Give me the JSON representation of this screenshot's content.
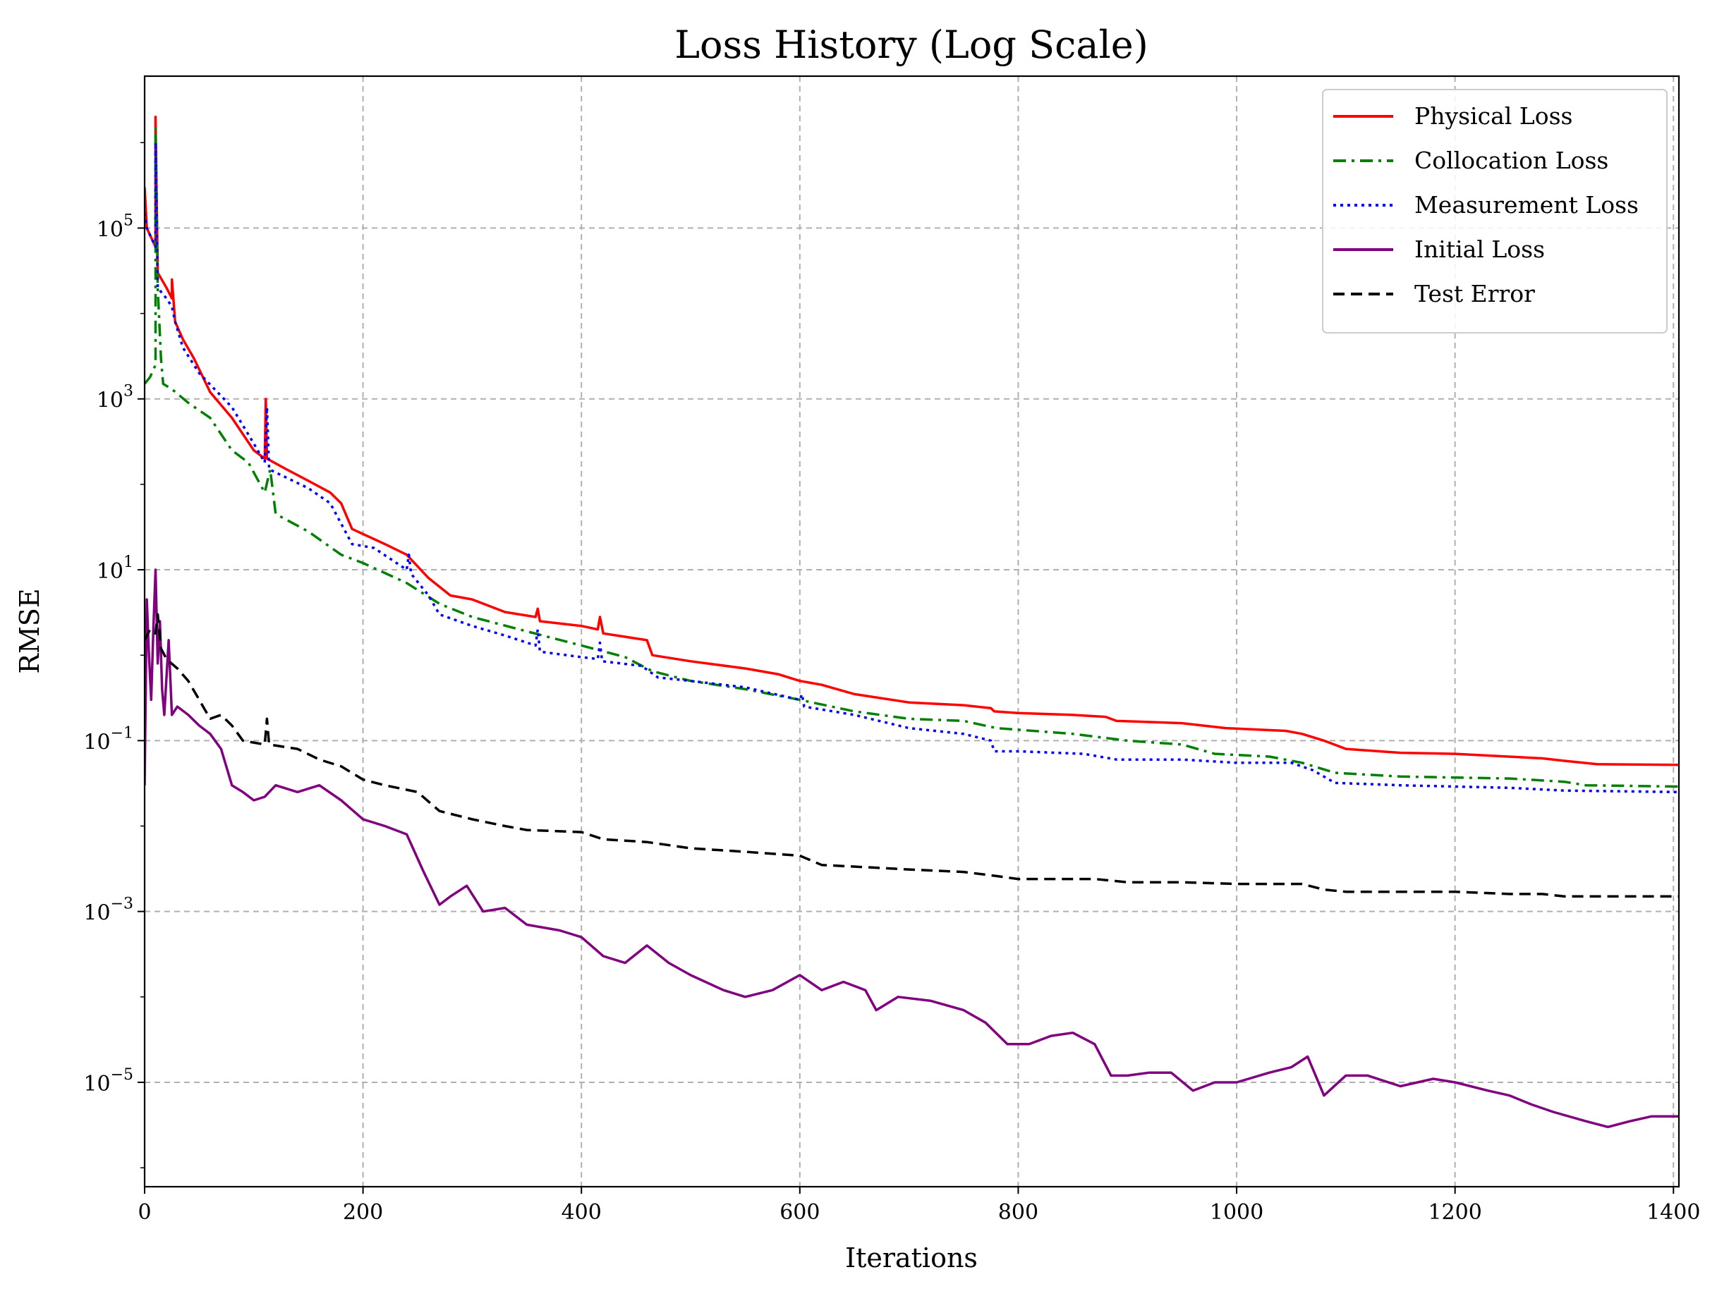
{
  "chart_data": {
    "type": "line",
    "title": "Loss History (Log Scale)",
    "xlabel": "Iterations",
    "ylabel": "RMSE",
    "xlim": [
      0,
      1405
    ],
    "ylim": [
      6e-07,
      6000000.0
    ],
    "yscale": "log",
    "grid": true,
    "legend_position": "top-right",
    "x_ticks": [
      0,
      200,
      400,
      600,
      800,
      1000,
      1200,
      1400
    ],
    "y_ticks": [
      {
        "value": 100000.0,
        "base": "10",
        "exp": "5"
      },
      {
        "value": 1000.0,
        "base": "10",
        "exp": "3"
      },
      {
        "value": 10,
        "base": "10",
        "exp": "1"
      },
      {
        "value": 0.1,
        "base": "10",
        "exp": "−1"
      },
      {
        "value": 0.001,
        "base": "10",
        "exp": "−3"
      },
      {
        "value": 1e-05,
        "base": "10",
        "exp": "−5"
      }
    ],
    "series": [
      {
        "name": "Physical Loss",
        "color": "#ff0000",
        "style": "solid",
        "points": [
          [
            0,
            300000
          ],
          [
            2,
            100000
          ],
          [
            10,
            60000
          ],
          [
            10,
            2000000
          ],
          [
            12,
            30000
          ],
          [
            20,
            20000
          ],
          [
            25,
            15000
          ],
          [
            25,
            25000
          ],
          [
            28,
            8000
          ],
          [
            35,
            5000
          ],
          [
            45,
            3000
          ],
          [
            60,
            1200
          ],
          [
            80,
            600
          ],
          [
            100,
            250
          ],
          [
            110,
            200
          ],
          [
            111,
            1000
          ],
          [
            112,
            200
          ],
          [
            130,
            150
          ],
          [
            150,
            110
          ],
          [
            170,
            80
          ],
          [
            180,
            60
          ],
          [
            190,
            30
          ],
          [
            220,
            20
          ],
          [
            240,
            15
          ],
          [
            260,
            8
          ],
          [
            280,
            5
          ],
          [
            300,
            4.5
          ],
          [
            330,
            3.2
          ],
          [
            358,
            2.8
          ],
          [
            360,
            3.5
          ],
          [
            362,
            2.5
          ],
          [
            400,
            2.2
          ],
          [
            415,
            2
          ],
          [
            417,
            2.8
          ],
          [
            420,
            1.8
          ],
          [
            460,
            1.5
          ],
          [
            465,
            1.0
          ],
          [
            500,
            0.85
          ],
          [
            550,
            0.7
          ],
          [
            580,
            0.6
          ],
          [
            600,
            0.5
          ],
          [
            620,
            0.45
          ],
          [
            650,
            0.35
          ],
          [
            700,
            0.28
          ],
          [
            750,
            0.26
          ],
          [
            775,
            0.24
          ],
          [
            778,
            0.22
          ],
          [
            800,
            0.21
          ],
          [
            850,
            0.2
          ],
          [
            880,
            0.19
          ],
          [
            890,
            0.17
          ],
          [
            950,
            0.16
          ],
          [
            990,
            0.14
          ],
          [
            1045,
            0.13
          ],
          [
            1060,
            0.12
          ],
          [
            1080,
            0.1
          ],
          [
            1100,
            0.08
          ],
          [
            1150,
            0.072
          ],
          [
            1200,
            0.07
          ],
          [
            1280,
            0.062
          ],
          [
            1300,
            0.058
          ],
          [
            1330,
            0.053
          ],
          [
            1405,
            0.052
          ]
        ]
      },
      {
        "name": "Collocation Loss",
        "color": "#008000",
        "style": "dashdot",
        "points": [
          [
            0,
            1500
          ],
          [
            5,
            1800
          ],
          [
            10,
            2500
          ],
          [
            10,
            1500000
          ],
          [
            12,
            20000
          ],
          [
            15,
            3000
          ],
          [
            17,
            1500
          ],
          [
            25,
            1300
          ],
          [
            40,
            900
          ],
          [
            60,
            600
          ],
          [
            80,
            250
          ],
          [
            95,
            180
          ],
          [
            110,
            80
          ],
          [
            115,
            150
          ],
          [
            120,
            45
          ],
          [
            150,
            28
          ],
          [
            180,
            15
          ],
          [
            200,
            12
          ],
          [
            240,
            7
          ],
          [
            270,
            4
          ],
          [
            300,
            2.8
          ],
          [
            350,
            1.9
          ],
          [
            400,
            1.3
          ],
          [
            440,
            0.95
          ],
          [
            465,
            0.65
          ],
          [
            500,
            0.5
          ],
          [
            550,
            0.4
          ],
          [
            600,
            0.3
          ],
          [
            650,
            0.22
          ],
          [
            700,
            0.18
          ],
          [
            750,
            0.17
          ],
          [
            780,
            0.14
          ],
          [
            850,
            0.12
          ],
          [
            900,
            0.1
          ],
          [
            950,
            0.09
          ],
          [
            980,
            0.07
          ],
          [
            1030,
            0.065
          ],
          [
            1060,
            0.055
          ],
          [
            1090,
            0.042
          ],
          [
            1150,
            0.038
          ],
          [
            1250,
            0.036
          ],
          [
            1300,
            0.033
          ],
          [
            1320,
            0.03
          ],
          [
            1405,
            0.029
          ]
        ]
      },
      {
        "name": "Measurement Loss",
        "color": "#0000ff",
        "style": "dotted",
        "points": [
          [
            0,
            150000
          ],
          [
            2,
            100000
          ],
          [
            10,
            60000
          ],
          [
            10,
            1000000
          ],
          [
            12,
            20000
          ],
          [
            20,
            15000
          ],
          [
            25,
            12000
          ],
          [
            28,
            8000
          ],
          [
            35,
            4000
          ],
          [
            50,
            2000
          ],
          [
            80,
            800
          ],
          [
            100,
            300
          ],
          [
            110,
            180
          ],
          [
            112,
            800
          ],
          [
            114,
            150
          ],
          [
            150,
            90
          ],
          [
            170,
            60
          ],
          [
            190,
            20
          ],
          [
            210,
            18
          ],
          [
            240,
            10
          ],
          [
            242,
            15
          ],
          [
            244,
            9
          ],
          [
            260,
            5
          ],
          [
            270,
            3
          ],
          [
            300,
            2.2
          ],
          [
            330,
            1.7
          ],
          [
            358,
            1.3
          ],
          [
            360,
            2.0
          ],
          [
            362,
            1.1
          ],
          [
            400,
            0.95
          ],
          [
            415,
            0.9
          ],
          [
            417,
            1.4
          ],
          [
            419,
            0.85
          ],
          [
            455,
            0.75
          ],
          [
            470,
            0.55
          ],
          [
            500,
            0.5
          ],
          [
            550,
            0.42
          ],
          [
            600,
            0.3
          ],
          [
            602,
            0.35
          ],
          [
            604,
            0.25
          ],
          [
            650,
            0.2
          ],
          [
            700,
            0.14
          ],
          [
            750,
            0.12
          ],
          [
            775,
            0.1
          ],
          [
            778,
            0.075
          ],
          [
            800,
            0.075
          ],
          [
            860,
            0.07
          ],
          [
            890,
            0.06
          ],
          [
            950,
            0.06
          ],
          [
            1000,
            0.055
          ],
          [
            1050,
            0.055
          ],
          [
            1070,
            0.045
          ],
          [
            1090,
            0.032
          ],
          [
            1150,
            0.03
          ],
          [
            1250,
            0.028
          ],
          [
            1300,
            0.026
          ],
          [
            1405,
            0.025
          ]
        ]
      },
      {
        "name": "Initial Loss",
        "color": "#800080",
        "style": "solid",
        "points": [
          [
            0,
            0.03
          ],
          [
            2,
            4.5
          ],
          [
            4,
            1.0
          ],
          [
            6,
            0.3
          ],
          [
            8,
            2.0
          ],
          [
            10,
            10
          ],
          [
            12,
            0.8
          ],
          [
            14,
            2.5
          ],
          [
            16,
            0.4
          ],
          [
            18,
            0.2
          ],
          [
            22,
            1.5
          ],
          [
            25,
            0.2
          ],
          [
            30,
            0.25
          ],
          [
            40,
            0.2
          ],
          [
            50,
            0.15
          ],
          [
            60,
            0.12
          ],
          [
            70,
            0.08
          ],
          [
            80,
            0.03
          ],
          [
            90,
            0.025
          ],
          [
            100,
            0.02
          ],
          [
            110,
            0.022
          ],
          [
            120,
            0.03
          ],
          [
            140,
            0.025
          ],
          [
            160,
            0.03
          ],
          [
            180,
            0.02
          ],
          [
            200,
            0.012
          ],
          [
            220,
            0.01
          ],
          [
            240,
            0.008
          ],
          [
            255,
            0.003
          ],
          [
            270,
            0.0012
          ],
          [
            280,
            0.0015
          ],
          [
            295,
            0.002
          ],
          [
            310,
            0.001
          ],
          [
            330,
            0.0011
          ],
          [
            350,
            0.0007
          ],
          [
            380,
            0.0006
          ],
          [
            400,
            0.0005
          ],
          [
            420,
            0.0003
          ],
          [
            440,
            0.00025
          ],
          [
            460,
            0.0004
          ],
          [
            480,
            0.00025
          ],
          [
            500,
            0.00018
          ],
          [
            530,
            0.00012
          ],
          [
            550,
            0.0001
          ],
          [
            575,
            0.00012
          ],
          [
            600,
            0.00018
          ],
          [
            620,
            0.00012
          ],
          [
            640,
            0.00015
          ],
          [
            660,
            0.00012
          ],
          [
            670,
            7e-05
          ],
          [
            690,
            0.0001
          ],
          [
            720,
            9e-05
          ],
          [
            750,
            7e-05
          ],
          [
            770,
            5e-05
          ],
          [
            790,
            2.8e-05
          ],
          [
            810,
            2.8e-05
          ],
          [
            830,
            3.5e-05
          ],
          [
            850,
            3.8e-05
          ],
          [
            870,
            2.8e-05
          ],
          [
            885,
            1.2e-05
          ],
          [
            900,
            1.2e-05
          ],
          [
            920,
            1.3e-05
          ],
          [
            940,
            1.3e-05
          ],
          [
            960,
            8e-06
          ],
          [
            980,
            1e-05
          ],
          [
            1000,
            1e-05
          ],
          [
            1030,
            1.3e-05
          ],
          [
            1050,
            1.5e-05
          ],
          [
            1065,
            2e-05
          ],
          [
            1080,
            7e-06
          ],
          [
            1100,
            1.2e-05
          ],
          [
            1120,
            1.2e-05
          ],
          [
            1150,
            9e-06
          ],
          [
            1180,
            1.1e-05
          ],
          [
            1200,
            1e-05
          ],
          [
            1230,
            8e-06
          ],
          [
            1250,
            7e-06
          ],
          [
            1270,
            5.5e-06
          ],
          [
            1290,
            4.5e-06
          ],
          [
            1320,
            3.5e-06
          ],
          [
            1340,
            3e-06
          ],
          [
            1360,
            3.5e-06
          ],
          [
            1380,
            4e-06
          ],
          [
            1405,
            4e-06
          ]
        ]
      },
      {
        "name": "Test Error",
        "color": "#000000",
        "style": "dashed",
        "points": [
          [
            0,
            1.5
          ],
          [
            5,
            2.0
          ],
          [
            10,
            1.8
          ],
          [
            12,
            3.0
          ],
          [
            15,
            1.2
          ],
          [
            20,
            0.9
          ],
          [
            30,
            0.7
          ],
          [
            40,
            0.5
          ],
          [
            50,
            0.3
          ],
          [
            60,
            0.18
          ],
          [
            70,
            0.2
          ],
          [
            80,
            0.15
          ],
          [
            90,
            0.1
          ],
          [
            110,
            0.09
          ],
          [
            112,
            0.18
          ],
          [
            114,
            0.09
          ],
          [
            140,
            0.08
          ],
          [
            160,
            0.06
          ],
          [
            180,
            0.05
          ],
          [
            200,
            0.035
          ],
          [
            220,
            0.03
          ],
          [
            250,
            0.025
          ],
          [
            270,
            0.015
          ],
          [
            300,
            0.012
          ],
          [
            330,
            0.01
          ],
          [
            350,
            0.009
          ],
          [
            400,
            0.0085
          ],
          [
            420,
            0.007
          ],
          [
            460,
            0.0065
          ],
          [
            500,
            0.0055
          ],
          [
            550,
            0.005
          ],
          [
            600,
            0.0045
          ],
          [
            620,
            0.0035
          ],
          [
            660,
            0.0033
          ],
          [
            700,
            0.0031
          ],
          [
            750,
            0.0029
          ],
          [
            780,
            0.0026
          ],
          [
            800,
            0.0024
          ],
          [
            870,
            0.0024
          ],
          [
            900,
            0.0022
          ],
          [
            950,
            0.0022
          ],
          [
            1000,
            0.0021
          ],
          [
            1060,
            0.0021
          ],
          [
            1080,
            0.0018
          ],
          [
            1100,
            0.0017
          ],
          [
            1200,
            0.0017
          ],
          [
            1250,
            0.0016
          ],
          [
            1280,
            0.0016
          ],
          [
            1300,
            0.0015
          ],
          [
            1405,
            0.0015
          ]
        ]
      }
    ]
  }
}
